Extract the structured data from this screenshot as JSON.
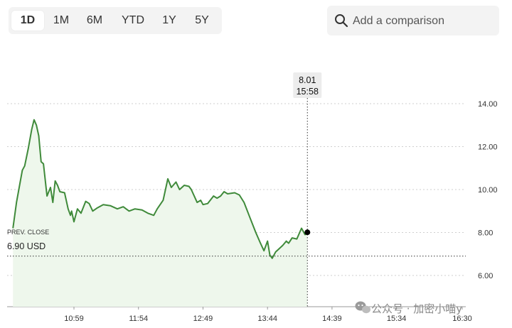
{
  "range_tabs": [
    {
      "label": "1D",
      "active": true
    },
    {
      "label": "1M",
      "active": false
    },
    {
      "label": "6M",
      "active": false
    },
    {
      "label": "YTD",
      "active": false
    },
    {
      "label": "1Y",
      "active": false
    },
    {
      "label": "5Y",
      "active": false
    }
  ],
  "comparison": {
    "placeholder": "Add a comparison",
    "icon": "search-icon"
  },
  "prev_close": {
    "label": "PREV. CLOSE",
    "value_text": "6.90 USD",
    "value": 6.9
  },
  "tooltip": {
    "value": "8.01",
    "time": "15:58"
  },
  "watermark": {
    "text": "公众号 · 加密小喵y"
  },
  "colors": {
    "line": "#3f8a3a",
    "fill": "#eef7ec",
    "grid": "#cfcfcf",
    "accent_dot": "#000000"
  },
  "chart_data": {
    "type": "area",
    "title": "",
    "xlabel": "",
    "ylabel": "",
    "x_ticks": [
      "10:59",
      "11:54",
      "12:49",
      "13:44",
      "14:39",
      "15:34",
      "16:30"
    ],
    "y_ticks": [
      "14.00",
      "12.00",
      "10.00",
      "8.00",
      "6.00"
    ],
    "ylim": [
      5.0,
      14.5
    ],
    "grid": true,
    "series": [
      {
        "values": [
          [
            "10:07",
            8.2
          ],
          [
            "10:10",
            9.4
          ],
          [
            "10:13",
            10.3
          ],
          [
            "10:15",
            10.9
          ],
          [
            "10:17",
            11.1
          ],
          [
            "10:20",
            11.9
          ],
          [
            "10:23",
            12.8
          ],
          [
            "10:25",
            13.25
          ],
          [
            "10:27",
            13.0
          ],
          [
            "10:29",
            12.5
          ],
          [
            "10:31",
            11.3
          ],
          [
            "10:33",
            11.2
          ],
          [
            "10:36",
            9.7
          ],
          [
            "10:39",
            10.1
          ],
          [
            "10:41",
            9.4
          ],
          [
            "10:43",
            10.4
          ],
          [
            "10:45",
            10.2
          ],
          [
            "10:47",
            9.9
          ],
          [
            "10:51",
            9.85
          ],
          [
            "10:54",
            9.1
          ],
          [
            "10:56",
            8.8
          ],
          [
            "10:57",
            9.0
          ],
          [
            "10:59",
            8.5
          ],
          [
            "11:02",
            9.1
          ],
          [
            "11:05",
            8.9
          ],
          [
            "11:09",
            9.45
          ],
          [
            "11:12",
            9.35
          ],
          [
            "11:15",
            9.0
          ],
          [
            "11:19",
            9.15
          ],
          [
            "11:24",
            9.3
          ],
          [
            "11:30",
            9.25
          ],
          [
            "11:36",
            9.1
          ],
          [
            "11:41",
            9.2
          ],
          [
            "11:46",
            9.0
          ],
          [
            "11:51",
            9.1
          ],
          [
            "11:57",
            9.05
          ],
          [
            "12:02",
            8.9
          ],
          [
            "12:07",
            8.8
          ],
          [
            "12:10",
            9.1
          ],
          [
            "12:15",
            9.5
          ],
          [
            "12:19",
            10.5
          ],
          [
            "12:22",
            10.1
          ],
          [
            "12:26",
            10.35
          ],
          [
            "12:29",
            10.0
          ],
          [
            "12:33",
            10.2
          ],
          [
            "12:37",
            10.15
          ],
          [
            "12:39",
            10.0
          ],
          [
            "12:44",
            9.4
          ],
          [
            "12:47",
            9.5
          ],
          [
            "12:49",
            9.3
          ],
          [
            "12:53",
            9.35
          ],
          [
            "12:58",
            9.7
          ],
          [
            "13:01",
            9.6
          ],
          [
            "13:04",
            9.7
          ],
          [
            "13:07",
            9.9
          ],
          [
            "13:10",
            9.8
          ],
          [
            "13:16",
            9.85
          ],
          [
            "13:20",
            9.75
          ],
          [
            "13:24",
            9.4
          ],
          [
            "13:29",
            8.7
          ],
          [
            "13:34",
            8.0
          ],
          [
            "13:38",
            7.5
          ],
          [
            "13:41",
            7.15
          ],
          [
            "13:44",
            7.6
          ],
          [
            "13:46",
            6.95
          ],
          [
            "13:48",
            6.8
          ],
          [
            "13:51",
            7.1
          ],
          [
            "13:53",
            7.2
          ],
          [
            "13:57",
            7.4
          ],
          [
            "14:00",
            7.6
          ],
          [
            "14:02",
            7.5
          ],
          [
            "14:05",
            7.75
          ],
          [
            "14:09",
            7.7
          ],
          [
            "14:13",
            8.2
          ],
          [
            "14:16",
            7.9
          ],
          [
            "14:18",
            8.01
          ]
        ]
      }
    ]
  }
}
